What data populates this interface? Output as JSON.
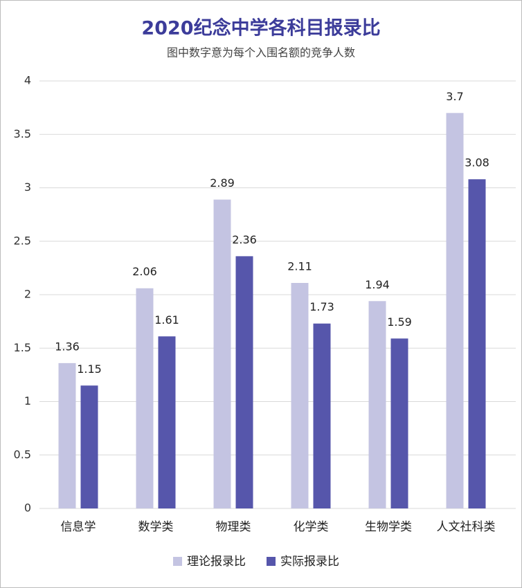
{
  "chart_data": {
    "type": "bar",
    "title": "2020纪念中学各科目报录比",
    "subtitle": "图中数字意为每个入围名额的竞争人数",
    "categories": [
      "信息学",
      "数学类",
      "物理类",
      "化学类",
      "生物学类",
      "人文社科类"
    ],
    "series": [
      {
        "name": "理论报录比",
        "color": "#c4c4e2",
        "values": [
          1.36,
          2.06,
          2.89,
          2.11,
          1.94,
          3.7
        ]
      },
      {
        "name": "实际报录比",
        "color": "#5656ab",
        "values": [
          1.15,
          1.61,
          2.36,
          1.73,
          1.59,
          3.08
        ]
      }
    ],
    "ylim": [
      0,
      4
    ],
    "yticks": [
      0,
      0.5,
      1,
      1.5,
      2,
      2.5,
      3,
      3.5,
      4
    ],
    "grid": true,
    "legend": "bottom"
  }
}
